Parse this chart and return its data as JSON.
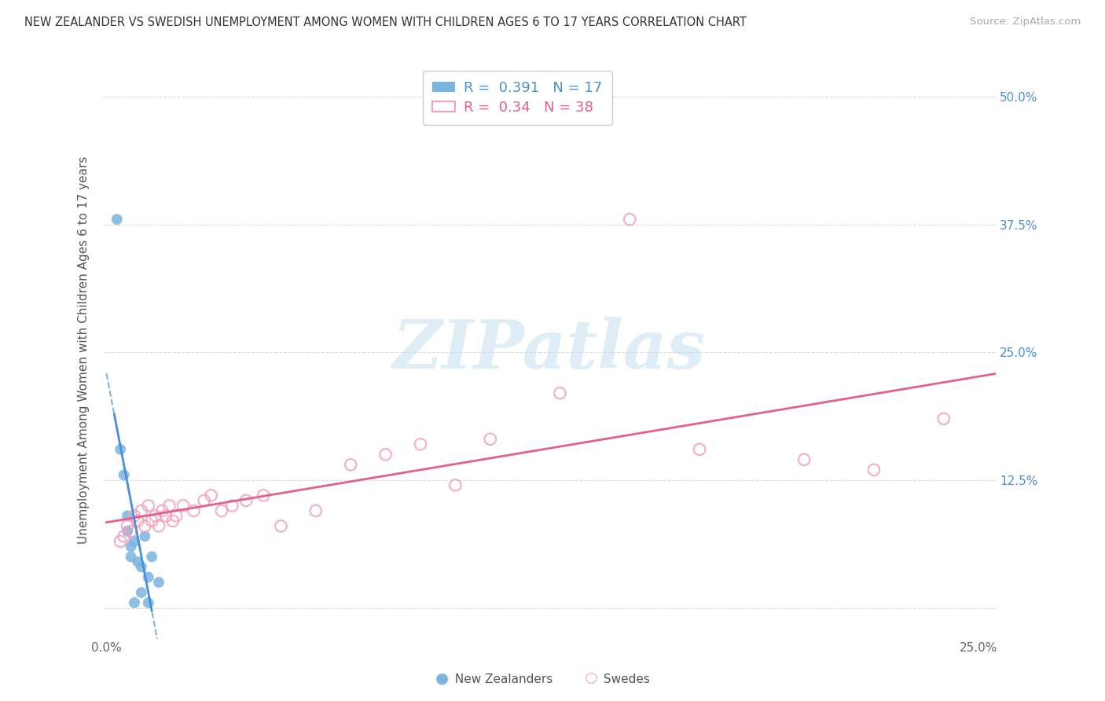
{
  "title": "NEW ZEALANDER VS SWEDISH UNEMPLOYMENT AMONG WOMEN WITH CHILDREN AGES 6 TO 17 YEARS CORRELATION CHART",
  "source": "Source: ZipAtlas.com",
  "ylabel": "Unemployment Among Women with Children Ages 6 to 17 years",
  "xlim": [
    -0.001,
    0.255
  ],
  "ylim": [
    -0.03,
    0.535
  ],
  "xtick_positions": [
    0.0,
    0.05,
    0.1,
    0.15,
    0.2,
    0.25
  ],
  "xtick_labels": [
    "0.0%",
    "",
    "",
    "",
    "",
    "25.0%"
  ],
  "ytick_positions": [
    0.0,
    0.125,
    0.25,
    0.375,
    0.5
  ],
  "ytick_labels": [
    "",
    "12.5%",
    "25.0%",
    "37.5%",
    "50.0%"
  ],
  "nz_color": "#7ab5e0",
  "sw_color": "#f4a0b8",
  "nz_line_color": "#4a90d9",
  "sw_line_color": "#e06090",
  "nz_R": 0.391,
  "nz_N": 17,
  "sw_R": 0.34,
  "sw_N": 38,
  "nz_x": [
    0.003,
    0.004,
    0.005,
    0.006,
    0.006,
    0.007,
    0.007,
    0.008,
    0.009,
    0.01,
    0.011,
    0.012,
    0.013,
    0.015,
    0.012,
    0.01,
    0.008
  ],
  "nz_y": [
    0.38,
    0.155,
    0.13,
    0.09,
    0.075,
    0.06,
    0.05,
    0.065,
    0.045,
    0.04,
    0.07,
    0.03,
    0.05,
    0.025,
    0.005,
    0.015,
    0.005
  ],
  "sw_x": [
    0.004,
    0.005,
    0.006,
    0.007,
    0.008,
    0.009,
    0.01,
    0.011,
    0.012,
    0.013,
    0.014,
    0.015,
    0.016,
    0.017,
    0.018,
    0.019,
    0.02,
    0.022,
    0.025,
    0.028,
    0.03,
    0.033,
    0.036,
    0.04,
    0.045,
    0.05,
    0.06,
    0.07,
    0.08,
    0.09,
    0.1,
    0.11,
    0.13,
    0.15,
    0.17,
    0.2,
    0.22,
    0.24
  ],
  "sw_y": [
    0.065,
    0.07,
    0.08,
    0.075,
    0.09,
    0.085,
    0.095,
    0.08,
    0.1,
    0.085,
    0.09,
    0.08,
    0.095,
    0.09,
    0.1,
    0.085,
    0.09,
    0.1,
    0.095,
    0.105,
    0.11,
    0.095,
    0.1,
    0.105,
    0.11,
    0.08,
    0.095,
    0.14,
    0.15,
    0.16,
    0.12,
    0.165,
    0.21,
    0.38,
    0.155,
    0.145,
    0.135,
    0.185
  ],
  "background_color": "#ffffff",
  "grid_color": "#dddddd",
  "right_tick_color": "#4a90d9",
  "watermark_color": "#c5dff0"
}
